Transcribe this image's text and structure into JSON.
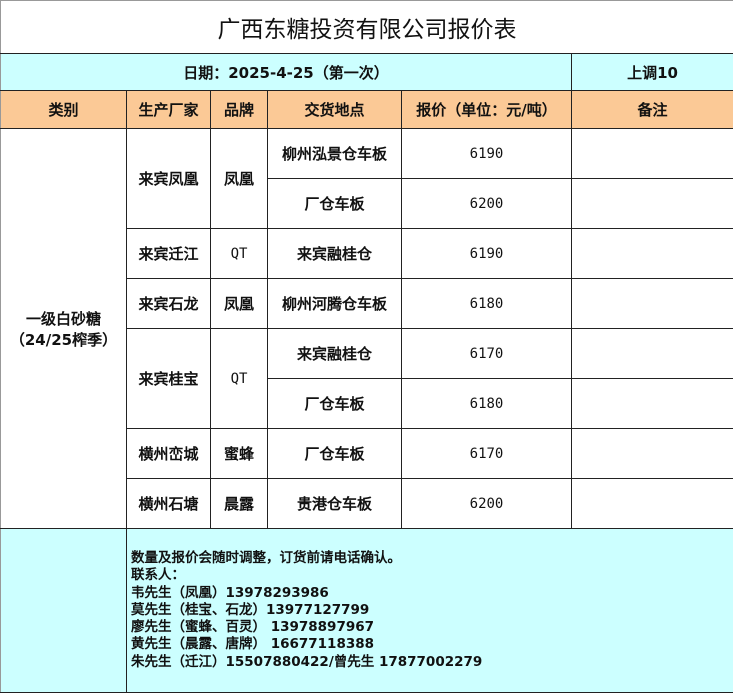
{
  "title": "广西东糖投资有限公司报价表",
  "date_label": "日期：2025-4-25（第一次）",
  "adjustment": "上调10",
  "headers": [
    "类别",
    "生产厂家",
    "品牌",
    "交货地点",
    "报价（单位：元/吨）",
    "备注"
  ],
  "category": {
    "line1": "一级白砂糖",
    "line2": "（24/25榨季）"
  },
  "rows": [
    {
      "manufacturer": "来宾凤凰",
      "brand": "凤凰",
      "location": "柳州泓景仓车板",
      "price": "6190",
      "remark": ""
    },
    {
      "manufacturer": "来宾凤凰",
      "brand": "凤凰",
      "location": "厂仓车板",
      "price": "6200",
      "remark": ""
    },
    {
      "manufacturer": "来宾迁江",
      "brand": "QT",
      "location": "来宾融桂仓",
      "price": "6190",
      "remark": ""
    },
    {
      "manufacturer": "来宾石龙",
      "brand": "凤凰",
      "location": "柳州河腾仓车板",
      "price": "6180",
      "remark": ""
    },
    {
      "manufacturer": "来宾桂宝",
      "brand": "QT",
      "location": "来宾融桂仓",
      "price": "6170",
      "remark": ""
    },
    {
      "manufacturer": "来宾桂宝",
      "brand": "QT",
      "location": "厂仓车板",
      "price": "6180",
      "remark": ""
    },
    {
      "manufacturer": "横州峦城",
      "brand": "蜜蜂",
      "location": "厂仓车板",
      "price": "6170",
      "remark": ""
    },
    {
      "manufacturer": "横州石塘",
      "brand": "晨露",
      "location": "贵港仓车板",
      "price": "6200",
      "remark": ""
    }
  ],
  "notes": [
    "数量及报价会随时调整，订货前请电话确认。",
    "联系人：",
    "韦先生（凤凰）13978293986",
    "莫先生（桂宝、石龙）13977127799",
    "廖先生（蜜蜂、百灵） 13978897967",
    "黄先生（晨露、唐牌） 16677118388",
    "朱先生（迁江）15507880422/曾先生 17877002279"
  ],
  "colors": {
    "date_bg": "#ccffff",
    "header_bg": "#fbc996"
  }
}
